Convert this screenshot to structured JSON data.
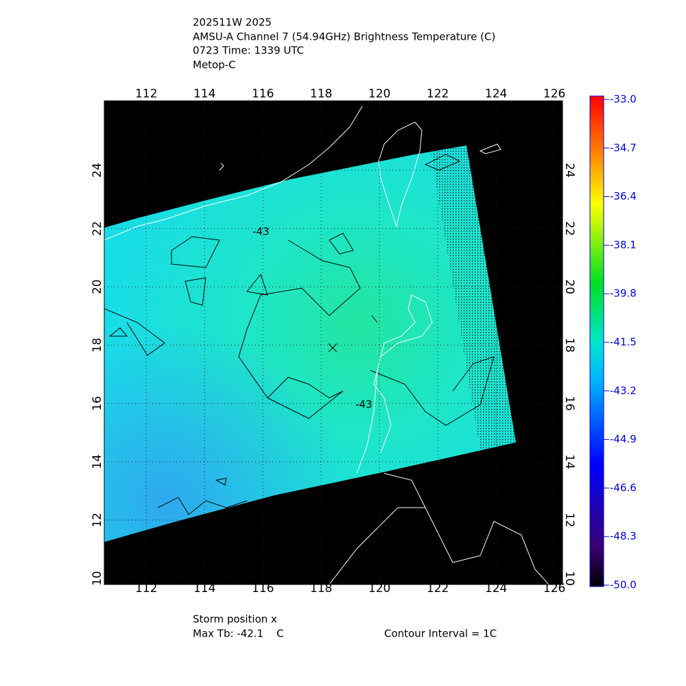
{
  "header": {
    "lines": [
      "202511W 2025",
      "AMSU-A Channel 7 (54.94GHz) Brightness Temperature (C)",
      "0723 Time: 1339 UTC",
      "Metop-C"
    ]
  },
  "map": {
    "lon_range": [
      110.56,
      126.28
    ],
    "lat_range": [
      9.79,
      26.38
    ],
    "lon_ticks": [
      112,
      114,
      116,
      118,
      120,
      122,
      124,
      126
    ],
    "lat_ticks": [
      10,
      12,
      14,
      16,
      18,
      20,
      22,
      24
    ],
    "contour_labels": [
      "-43",
      "-43"
    ]
  },
  "colorbar": {
    "range": [
      -50,
      -33
    ],
    "ticks": [
      {
        "value": -33,
        "label": "-33.0"
      },
      {
        "value": -34.7,
        "label": "-34.7"
      },
      {
        "value": -36.4,
        "label": "-36.4"
      },
      {
        "value": -38.1,
        "label": "-38.1"
      },
      {
        "value": -39.8,
        "label": "-39.8"
      },
      {
        "value": -41.5,
        "label": "-41.5"
      },
      {
        "value": -43.2,
        "label": "-43.2"
      },
      {
        "value": -44.9,
        "label": "-44.9"
      },
      {
        "value": -46.6,
        "label": "-46.6"
      },
      {
        "value": -48.3,
        "label": "-48.3"
      },
      {
        "value": -50,
        "label": "-50.0"
      }
    ]
  },
  "footer": {
    "storm": "Storm position x",
    "max_tb": "Max Tb: -42.1    C",
    "contour": "Contour Interval = 1C"
  }
}
